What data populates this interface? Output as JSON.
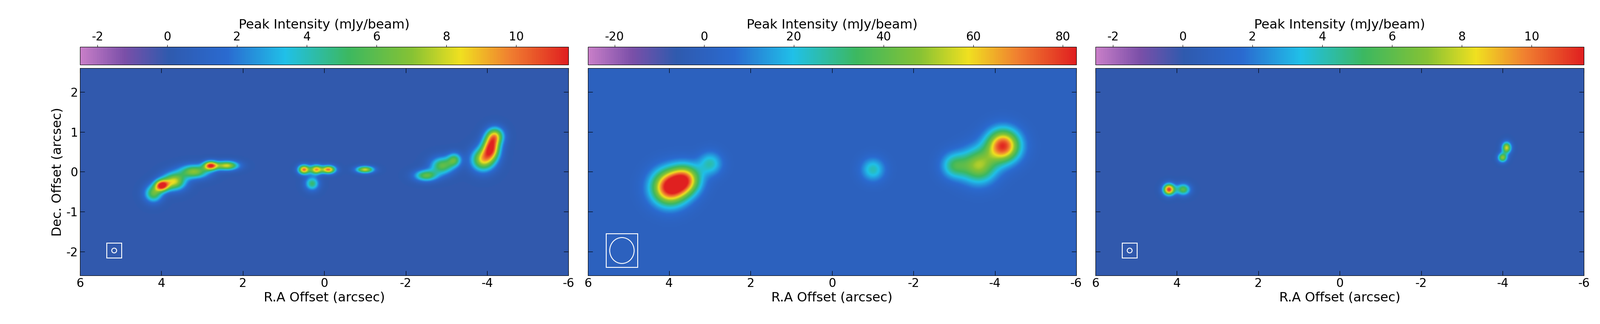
{
  "chart_data": [
    {
      "type": "heatmap",
      "xlabel": "R.A Offset (arcsec)",
      "ylabel": "Dec. Offset (arcsec)",
      "xlim": [
        6,
        -6
      ],
      "ylim": [
        -2.6,
        2.6
      ],
      "xticks": [
        6,
        4,
        2,
        0,
        -2,
        -4,
        -6
      ],
      "yticks": [
        -2,
        -1,
        0,
        1,
        2
      ],
      "colorbar_label": "Peak Intensity (mJy/beam)",
      "clim": [
        -2.5,
        11.5
      ],
      "cticks": [
        -2,
        0,
        2,
        4,
        6,
        8,
        10
      ],
      "beam": [
        0.12,
        0.12
      ],
      "components": [
        {
          "x": 4.0,
          "y": -0.35,
          "peak": 10,
          "sx": 0.12,
          "sy": 0.1
        },
        {
          "x": 4.2,
          "y": -0.55,
          "peak": 6,
          "sx": 0.15,
          "sy": 0.15
        },
        {
          "x": 3.7,
          "y": -0.25,
          "peak": 8,
          "sx": 0.2,
          "sy": 0.15
        },
        {
          "x": 3.2,
          "y": 0.0,
          "peak": 7,
          "sx": 0.25,
          "sy": 0.12
        },
        {
          "x": 2.8,
          "y": 0.15,
          "peak": 10,
          "sx": 0.12,
          "sy": 0.08
        },
        {
          "x": 2.4,
          "y": 0.15,
          "peak": 8,
          "sx": 0.2,
          "sy": 0.08
        },
        {
          "x": 0.5,
          "y": 0.05,
          "peak": 10,
          "sx": 0.1,
          "sy": 0.08
        },
        {
          "x": 0.2,
          "y": 0.05,
          "peak": 9,
          "sx": 0.1,
          "sy": 0.08
        },
        {
          "x": -0.1,
          "y": 0.05,
          "peak": 10,
          "sx": 0.12,
          "sy": 0.07
        },
        {
          "x": 0.3,
          "y": -0.3,
          "peak": 5,
          "sx": 0.12,
          "sy": 0.12
        },
        {
          "x": -1.0,
          "y": 0.05,
          "peak": 8,
          "sx": 0.15,
          "sy": 0.06
        },
        {
          "x": -2.5,
          "y": -0.1,
          "peak": 6,
          "sx": 0.2,
          "sy": 0.1
        },
        {
          "x": -2.9,
          "y": 0.15,
          "peak": 6,
          "sx": 0.2,
          "sy": 0.15
        },
        {
          "x": -3.2,
          "y": 0.3,
          "peak": 5,
          "sx": 0.12,
          "sy": 0.12
        },
        {
          "x": -3.9,
          "y": 0.3,
          "peak": 8,
          "sx": 0.2,
          "sy": 0.2
        },
        {
          "x": -4.1,
          "y": 0.6,
          "peak": 10,
          "sx": 0.15,
          "sy": 0.2
        },
        {
          "x": -4.2,
          "y": 0.9,
          "peak": 7,
          "sx": 0.15,
          "sy": 0.15
        }
      ]
    },
    {
      "type": "heatmap",
      "xlabel": "R.A Offset (arcsec)",
      "xlim": [
        6,
        -6
      ],
      "ylim": [
        -2.6,
        2.6
      ],
      "xticks": [
        6,
        4,
        2,
        0,
        -2,
        -4,
        -6
      ],
      "yticks": [
        -2,
        -1,
        0,
        1,
        2
      ],
      "tick_labels": "x",
      "colorbar_label": "Peak Intensity (mJy/beam)",
      "clim": [
        -26,
        83
      ],
      "cticks": [
        -20,
        0,
        20,
        40,
        60,
        80
      ],
      "beam": [
        0.6,
        0.65
      ],
      "components": [
        {
          "x": 4.0,
          "y": -0.4,
          "peak": 85,
          "sx": 0.3,
          "sy": 0.3
        },
        {
          "x": 3.6,
          "y": -0.2,
          "peak": 60,
          "sx": 0.25,
          "sy": 0.25
        },
        {
          "x": 3.0,
          "y": 0.2,
          "peak": 25,
          "sx": 0.2,
          "sy": 0.2
        },
        {
          "x": -1.0,
          "y": 0.05,
          "peak": 25,
          "sx": 0.2,
          "sy": 0.2
        },
        {
          "x": -3.0,
          "y": 0.15,
          "peak": 30,
          "sx": 0.22,
          "sy": 0.22
        },
        {
          "x": -3.6,
          "y": 0.15,
          "peak": 50,
          "sx": 0.3,
          "sy": 0.3
        },
        {
          "x": -4.2,
          "y": 0.65,
          "peak": 80,
          "sx": 0.28,
          "sy": 0.28
        }
      ]
    },
    {
      "type": "heatmap",
      "xlabel": "R.A Offset (arcsec)",
      "xlim": [
        6,
        -6
      ],
      "ylim": [
        -2.6,
        2.6
      ],
      "xticks": [
        6,
        4,
        2,
        0,
        -2,
        -4,
        -6
      ],
      "yticks": [
        -2,
        -1,
        0,
        1,
        2
      ],
      "tick_labels": "x",
      "colorbar_label": "Peak Intensity (mJy/beam)",
      "clim": [
        -2.5,
        11.5
      ],
      "cticks": [
        -2,
        0,
        2,
        4,
        6,
        8,
        10
      ],
      "beam": [
        0.12,
        0.12
      ],
      "components": [
        {
          "x": 4.2,
          "y": -0.45,
          "peak": 11,
          "sx": 0.1,
          "sy": 0.1
        },
        {
          "x": 3.85,
          "y": -0.45,
          "peak": 6,
          "sx": 0.12,
          "sy": 0.1
        },
        {
          "x": -4.1,
          "y": 0.6,
          "peak": 8,
          "sx": 0.08,
          "sy": 0.1
        },
        {
          "x": -4.0,
          "y": 0.35,
          "peak": 7,
          "sx": 0.08,
          "sy": 0.08
        }
      ]
    }
  ]
}
